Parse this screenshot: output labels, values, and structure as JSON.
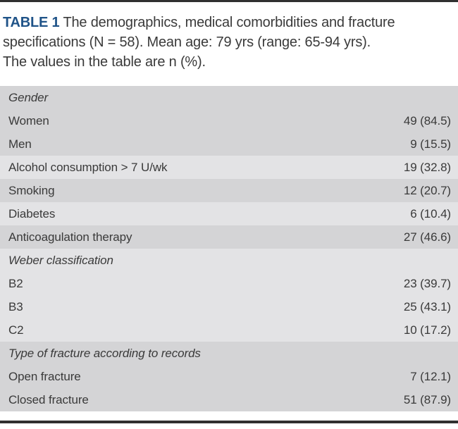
{
  "title": {
    "label": "TABLE 1",
    "lines": [
      "The demographics, medical comorbidities and fracture",
      "specifications (N = 58). Mean age: 79 yrs (range: 65-94 yrs).",
      "The values in the table are n (%)."
    ],
    "full_text": "TABLE 1 The demographics, medical comorbidities and fracture specifications (N = 58). Mean age: 79 yrs (range: 65-94 yrs). The values in the table are n (%)."
  },
  "table": {
    "value_format": "n (%)",
    "rows": [
      {
        "label": "Gender",
        "value": "",
        "style": "section",
        "shade": "dark"
      },
      {
        "label": "Women",
        "value": "49 (84.5)",
        "style": "data",
        "shade": "dark"
      },
      {
        "label": "Men",
        "value": "9 (15.5)",
        "style": "data",
        "shade": "dark"
      },
      {
        "label": "Alcohol consumption > 7 U/wk",
        "value": "19 (32.8)",
        "style": "data",
        "shade": "light"
      },
      {
        "label": "Smoking",
        "value": "12 (20.7)",
        "style": "data",
        "shade": "dark"
      },
      {
        "label": "Diabetes",
        "value": "6 (10.4)",
        "style": "data",
        "shade": "light"
      },
      {
        "label": "Anticoagulation therapy",
        "value": "27 (46.6)",
        "style": "data",
        "shade": "dark"
      },
      {
        "label": "Weber classification",
        "value": "",
        "style": "section",
        "shade": "light"
      },
      {
        "label": "B2",
        "value": "23 (39.7)",
        "style": "data",
        "shade": "light"
      },
      {
        "label": "B3",
        "value": "25 (43.1)",
        "style": "data",
        "shade": "light"
      },
      {
        "label": "C2",
        "value": "10 (17.2)",
        "style": "data",
        "shade": "light"
      },
      {
        "label": "Type of fracture according to records",
        "value": "",
        "style": "section",
        "shade": "dark"
      },
      {
        "label": "Open fracture",
        "value": "7 (12.1)",
        "style": "data",
        "shade": "dark"
      },
      {
        "label": "Closed fracture",
        "value": "51 (87.9)",
        "style": "data",
        "shade": "dark"
      }
    ]
  },
  "colors": {
    "accent_blue": "#1f5388",
    "text": "#3a3a3a",
    "row_dark": "#d4d4d6",
    "row_light": "#e3e3e5",
    "rule": "#303030",
    "background": "#ffffff"
  }
}
